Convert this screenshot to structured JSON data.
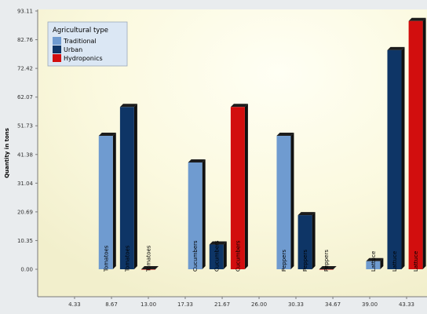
{
  "chart_data": {
    "type": "bar",
    "title": "",
    "xlabel": "",
    "ylabel": "Quantity in tons",
    "ylim": [
      0,
      93.11
    ],
    "xlim": [
      0,
      43.33
    ],
    "y_ticks": [
      "93.11",
      "82.76",
      "72.42",
      "62.07",
      "51.73",
      "41.38",
      "31.04",
      "20.69",
      "10.35",
      "0.00"
    ],
    "x_ticks": [
      "4.33",
      "8.67",
      "13.00",
      "17.33",
      "21.67",
      "26.00",
      "30.33",
      "34.67",
      "39.00",
      "43.33"
    ],
    "grid": false,
    "legend": {
      "title": "Agricultural type",
      "placement": "top-left"
    },
    "series": [
      {
        "name": "Traditional",
        "color": "#6f9bd0",
        "points": [
          {
            "label": "Tomatoes",
            "x": 8.0,
            "y": 48.1
          },
          {
            "label": "Cucumbers",
            "x": 18.5,
            "y": 38.5
          },
          {
            "label": "Peppers",
            "x": 28.9,
            "y": 48.1
          },
          {
            "label": "Lattuce",
            "x": 39.4,
            "y": 2.9
          }
        ]
      },
      {
        "name": "Urban",
        "color": "#0e3566",
        "points": [
          {
            "label": "Tomatoes",
            "x": 10.5,
            "y": 58.5
          },
          {
            "label": "Cucumbers",
            "x": 21.0,
            "y": 8.9
          },
          {
            "label": "Peppers",
            "x": 31.4,
            "y": 19.5
          },
          {
            "label": "Lattuce",
            "x": 41.9,
            "y": 79.0
          }
        ]
      },
      {
        "name": "Hydroponics",
        "color": "#d20e0e",
        "points": [
          {
            "label": "Tomatoes",
            "x": 13.0,
            "y": 0.0
          },
          {
            "label": "Cucumbers",
            "x": 23.5,
            "y": 58.5
          },
          {
            "label": "Peppers",
            "x": 33.9,
            "y": 0.0
          },
          {
            "label": "Lattuce",
            "x": 44.4,
            "y": 89.5
          }
        ]
      }
    ]
  }
}
